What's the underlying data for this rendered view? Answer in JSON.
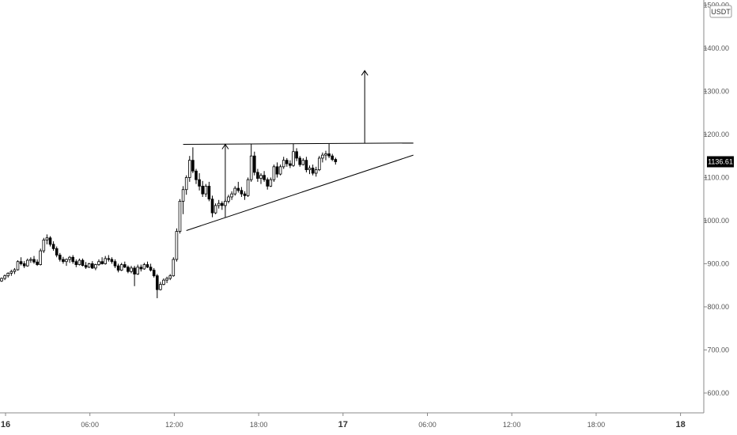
{
  "chart_data": {
    "type": "candlestick",
    "quote_unit": "USDT",
    "y_axis": {
      "ticks": [
        600,
        700,
        800,
        900,
        1000,
        1100,
        1200,
        1300,
        1400,
        1500
      ],
      "tick_labels": [
        "600.00",
        "700.00",
        "800.00",
        "900.00",
        "1000.00",
        "1100.00",
        "1200.00",
        "1300.00",
        "1400.00",
        "1500.00"
      ],
      "ylim": [
        550,
        1510
      ]
    },
    "x_axis": {
      "ticks": [
        {
          "label": "16",
          "major": true
        },
        {
          "label": "06:00",
          "major": false
        },
        {
          "label": "12:00",
          "major": false
        },
        {
          "label": "18:00",
          "major": false
        },
        {
          "label": "17",
          "major": true
        },
        {
          "label": "06:00",
          "major": false
        },
        {
          "label": "12:00",
          "major": false
        },
        {
          "label": "18:00",
          "major": false
        },
        {
          "label": "18",
          "major": true
        }
      ]
    },
    "last_price": {
      "value": 1136.61,
      "label": "1136.61"
    },
    "colors": {
      "up": "#ffffff",
      "down": "#000000",
      "wick": "#000000",
      "grid_axis": "#888888"
    },
    "candles": [
      [
        860,
        868,
        858,
        866
      ],
      [
        866,
        875,
        862,
        872
      ],
      [
        872,
        880,
        868,
        878
      ],
      [
        878,
        886,
        872,
        882
      ],
      [
        882,
        890,
        876,
        886
      ],
      [
        886,
        908,
        884,
        905
      ],
      [
        905,
        915,
        896,
        900
      ],
      [
        900,
        906,
        890,
        895
      ],
      [
        895,
        912,
        893,
        908
      ],
      [
        908,
        915,
        902,
        910
      ],
      [
        910,
        918,
        900,
        904
      ],
      [
        904,
        910,
        895,
        898
      ],
      [
        898,
        935,
        896,
        930
      ],
      [
        930,
        960,
        925,
        955
      ],
      [
        955,
        968,
        945,
        960
      ],
      [
        960,
        964,
        940,
        945
      ],
      [
        945,
        952,
        930,
        935
      ],
      [
        935,
        940,
        915,
        920
      ],
      [
        920,
        925,
        905,
        910
      ],
      [
        910,
        916,
        900,
        905
      ],
      [
        905,
        912,
        895,
        910
      ],
      [
        910,
        918,
        902,
        915
      ],
      [
        915,
        920,
        900,
        905
      ],
      [
        905,
        910,
        892,
        898
      ],
      [
        898,
        912,
        896,
        908
      ],
      [
        908,
        912,
        894,
        896
      ],
      [
        896,
        904,
        888,
        892
      ],
      [
        892,
        902,
        890,
        900
      ],
      [
        900,
        906,
        888,
        890
      ],
      [
        890,
        900,
        885,
        898
      ],
      [
        898,
        910,
        895,
        905
      ],
      [
        905,
        915,
        898,
        900
      ],
      [
        900,
        918,
        898,
        912
      ],
      [
        912,
        920,
        905,
        910
      ],
      [
        910,
        915,
        900,
        905
      ],
      [
        905,
        910,
        890,
        895
      ],
      [
        895,
        900,
        880,
        885
      ],
      [
        885,
        902,
        883,
        898
      ],
      [
        898,
        905,
        890,
        892
      ],
      [
        892,
        896,
        878,
        882
      ],
      [
        882,
        895,
        878,
        890
      ],
      [
        890,
        895,
        848,
        876
      ],
      [
        876,
        898,
        874,
        892
      ],
      [
        892,
        898,
        882,
        888
      ],
      [
        888,
        902,
        886,
        898
      ],
      [
        898,
        905,
        890,
        892
      ],
      [
        892,
        900,
        882,
        885
      ],
      [
        885,
        890,
        868,
        872
      ],
      [
        872,
        876,
        820,
        840
      ],
      [
        840,
        858,
        838,
        852
      ],
      [
        852,
        866,
        850,
        862
      ],
      [
        862,
        870,
        855,
        866
      ],
      [
        866,
        876,
        862,
        872
      ],
      [
        872,
        915,
        870,
        910
      ],
      [
        910,
        982,
        905,
        975
      ],
      [
        975,
        1050,
        970,
        1045
      ],
      [
        1045,
        1080,
        1015,
        1072
      ],
      [
        1072,
        1105,
        1060,
        1100
      ],
      [
        1100,
        1150,
        1090,
        1140
      ],
      [
        1140,
        1170,
        1110,
        1115
      ],
      [
        1115,
        1120,
        1085,
        1095
      ],
      [
        1095,
        1110,
        1070,
        1080
      ],
      [
        1080,
        1092,
        1055,
        1062
      ],
      [
        1062,
        1085,
        1055,
        1080
      ],
      [
        1080,
        1090,
        1045,
        1050
      ],
      [
        1050,
        1058,
        1008,
        1018
      ],
      [
        1018,
        1040,
        1015,
        1035
      ],
      [
        1035,
        1048,
        1028,
        1040
      ],
      [
        1040,
        1045,
        1025,
        1035
      ],
      [
        1035,
        1050,
        1030,
        1045
      ],
      [
        1045,
        1060,
        1040,
        1055
      ],
      [
        1055,
        1068,
        1048,
        1062
      ],
      [
        1062,
        1080,
        1058,
        1075
      ],
      [
        1075,
        1090,
        1065,
        1070
      ],
      [
        1070,
        1078,
        1055,
        1062
      ],
      [
        1062,
        1068,
        1048,
        1058
      ],
      [
        1058,
        1100,
        1055,
        1095
      ],
      [
        1095,
        1178,
        1090,
        1150
      ],
      [
        1150,
        1160,
        1105,
        1112
      ],
      [
        1112,
        1120,
        1090,
        1098
      ],
      [
        1098,
        1110,
        1085,
        1105
      ],
      [
        1105,
        1115,
        1090,
        1095
      ],
      [
        1095,
        1100,
        1072,
        1080
      ],
      [
        1080,
        1100,
        1078,
        1095
      ],
      [
        1095,
        1130,
        1090,
        1125
      ],
      [
        1125,
        1135,
        1100,
        1108
      ],
      [
        1108,
        1130,
        1105,
        1125
      ],
      [
        1125,
        1148,
        1120,
        1140
      ],
      [
        1140,
        1145,
        1125,
        1132
      ],
      [
        1132,
        1140,
        1122,
        1128
      ],
      [
        1128,
        1178,
        1125,
        1160
      ],
      [
        1160,
        1168,
        1138,
        1145
      ],
      [
        1145,
        1150,
        1125,
        1130
      ],
      [
        1130,
        1145,
        1128,
        1140
      ],
      [
        1140,
        1148,
        1112,
        1118
      ],
      [
        1118,
        1128,
        1108,
        1122
      ],
      [
        1122,
        1130,
        1105,
        1110
      ],
      [
        1110,
        1125,
        1102,
        1118
      ],
      [
        1118,
        1150,
        1115,
        1145
      ],
      [
        1145,
        1158,
        1135,
        1152
      ],
      [
        1152,
        1162,
        1140,
        1155
      ],
      [
        1155,
        1178,
        1145,
        1150
      ],
      [
        1150,
        1155,
        1138,
        1142
      ],
      [
        1142,
        1146,
        1130,
        1136.61
      ]
    ],
    "annotations": [
      {
        "kind": "line",
        "label": "resistance",
        "from": {
          "candle": 56,
          "value": 1177
        },
        "to": {
          "candle": 127,
          "value": 1180
        }
      },
      {
        "kind": "line",
        "label": "rising-support",
        "from": {
          "candle": 57,
          "value": 977
        },
        "to": {
          "candle": 127,
          "value": 1152
        }
      },
      {
        "kind": "arrow",
        "label": "pattern-height",
        "from": {
          "candle": 69,
          "value": 1008
        },
        "to": {
          "candle": 69,
          "value": 1177
        }
      },
      {
        "kind": "arrow",
        "label": "breakout-target",
        "from": {
          "candle": 112,
          "value": 1180
        },
        "to": {
          "candle": 112,
          "value": 1348
        }
      }
    ]
  }
}
